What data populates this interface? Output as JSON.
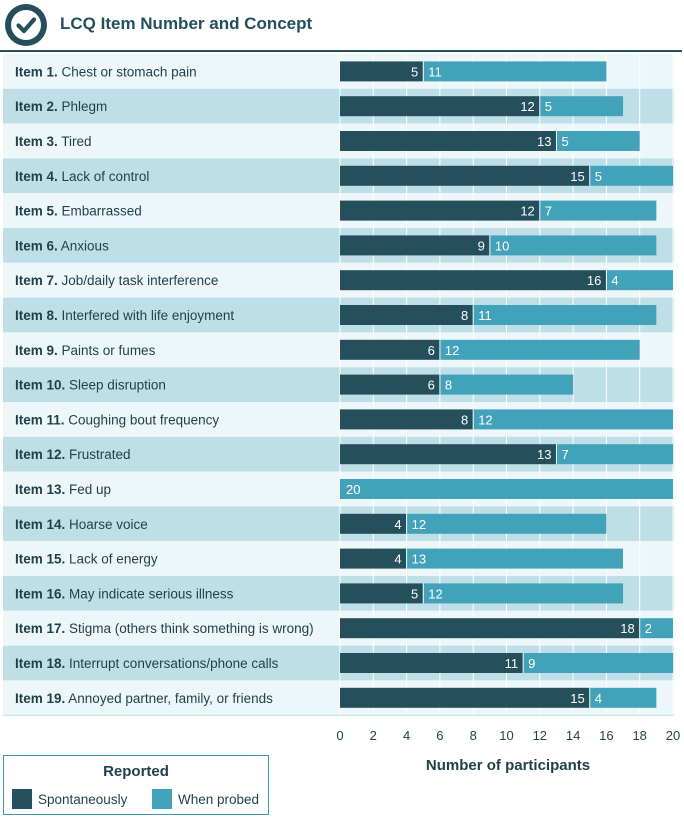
{
  "header": {
    "title": "LCQ Item Number and Concept",
    "icon": "check-circle-icon"
  },
  "colors": {
    "spontaneous": "#244f5b",
    "probed": "#42a2b9",
    "row_light": "#edf6f8",
    "row_dark": "#bedfe7",
    "grid": "#ffffff",
    "value_text": "#ffffff"
  },
  "chart_data": {
    "type": "bar",
    "orientation": "horizontal",
    "stacked": true,
    "title": "LCQ Item Number and Concept",
    "xlabel": "Number of participants",
    "ylabel": "",
    "xlim": [
      0,
      20
    ],
    "x_ticks": [
      0,
      2,
      4,
      6,
      8,
      10,
      12,
      14,
      16,
      18,
      20
    ],
    "grid": true,
    "categories": [
      {
        "num": "Item 1.",
        "concept": "Chest or stomach pain"
      },
      {
        "num": "Item 2.",
        "concept": "Phlegm"
      },
      {
        "num": "Item 3.",
        "concept": "Tired"
      },
      {
        "num": "Item 4.",
        "concept": "Lack of control"
      },
      {
        "num": "Item 5.",
        "concept": "Embarrassed"
      },
      {
        "num": "Item 6.",
        "concept": "Anxious"
      },
      {
        "num": "Item 7.",
        "concept": "Job/daily task interference"
      },
      {
        "num": "Item 8.",
        "concept": "Interfered with life enjoyment"
      },
      {
        "num": "Item 9.",
        "concept": "Paints or fumes"
      },
      {
        "num": "Item 10.",
        "concept": "Sleep disruption"
      },
      {
        "num": "Item 11.",
        "concept": "Coughing bout frequency"
      },
      {
        "num": "Item 12.",
        "concept": "Frustrated"
      },
      {
        "num": "Item 13.",
        "concept": "Fed up"
      },
      {
        "num": "Item 14.",
        "concept": "Hoarse voice"
      },
      {
        "num": "Item 15.",
        "concept": "Lack of energy"
      },
      {
        "num": "Item 16.",
        "concept": "May indicate serious illness"
      },
      {
        "num": "Item 17.",
        "concept": "Stigma (others think something is wrong)"
      },
      {
        "num": "Item 18.",
        "concept": "Interrupt conversations/phone calls"
      },
      {
        "num": "Item 19.",
        "concept": "Annoyed partner, family, or friends"
      }
    ],
    "series": [
      {
        "name": "Spontaneously",
        "values": [
          5,
          12,
          13,
          15,
          12,
          9,
          16,
          8,
          6,
          6,
          8,
          13,
          0,
          4,
          4,
          5,
          18,
          11,
          15
        ]
      },
      {
        "name": "When probed",
        "values": [
          11,
          5,
          5,
          5,
          7,
          10,
          4,
          11,
          12,
          8,
          12,
          7,
          20,
          12,
          13,
          12,
          2,
          9,
          4
        ]
      }
    ],
    "legend": {
      "title": "Reported",
      "position": "bottom-left"
    }
  }
}
